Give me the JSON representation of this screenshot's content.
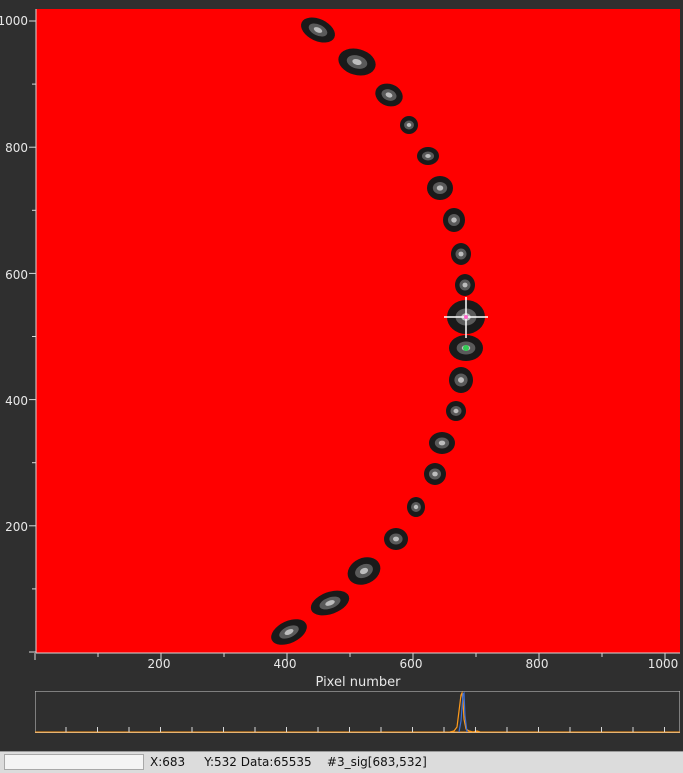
{
  "plot": {
    "xlabel": "Pixel number",
    "x_ticks": [
      "200",
      "400",
      "600",
      "800",
      "1000"
    ],
    "y_ticks": [
      "1000",
      "800",
      "600",
      "400",
      "200"
    ],
    "colors": {
      "background": "#ff0000",
      "frame": "#2f2f2f",
      "spot": "#1a1a1a",
      "cursor": "#ffffff",
      "profile_orange": "#ff9a1a",
      "profile_blue": "#3b6fd6"
    },
    "spot_icon": "dark-spot-icon",
    "cursor_icon": "crosshair-icon"
  },
  "status": {
    "x": "X:683",
    "y_data": "Y:532 Data:65535",
    "channel": "#3_sig[683,532]"
  }
}
